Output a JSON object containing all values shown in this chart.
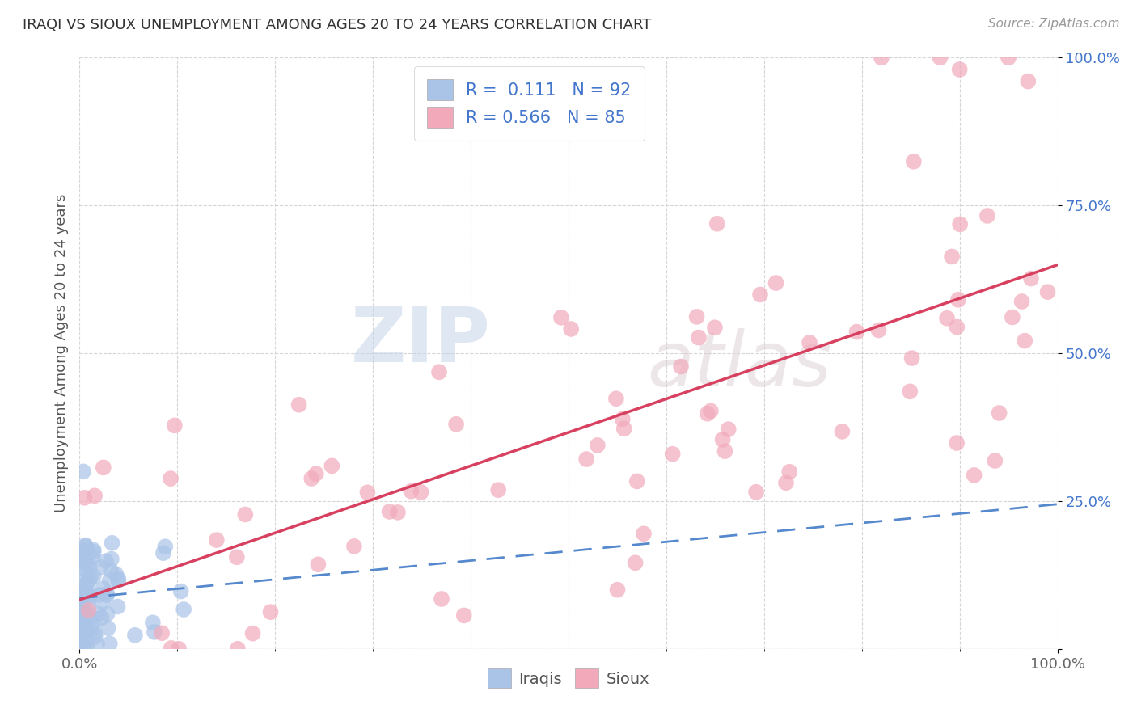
{
  "title": "IRAQI VS SIOUX UNEMPLOYMENT AMONG AGES 20 TO 24 YEARS CORRELATION CHART",
  "source": "Source: ZipAtlas.com",
  "ylabel": "Unemployment Among Ages 20 to 24 years",
  "legend_R_Iraqi": "0.111",
  "legend_N_Iraqi": "92",
  "legend_R_Sioux": "0.566",
  "legend_N_Sioux": "85",
  "color_iraqi": "#aac4e8",
  "color_sioux": "#f2aabb",
  "color_trendline_iraqi": "#5588cc",
  "color_trendline_sioux": "#d84060",
  "color_legend_text_blue": "#4477cc",
  "background_color": "#ffffff",
  "watermark_zip": "ZIP",
  "watermark_atlas": "atlas",
  "seed": 42
}
